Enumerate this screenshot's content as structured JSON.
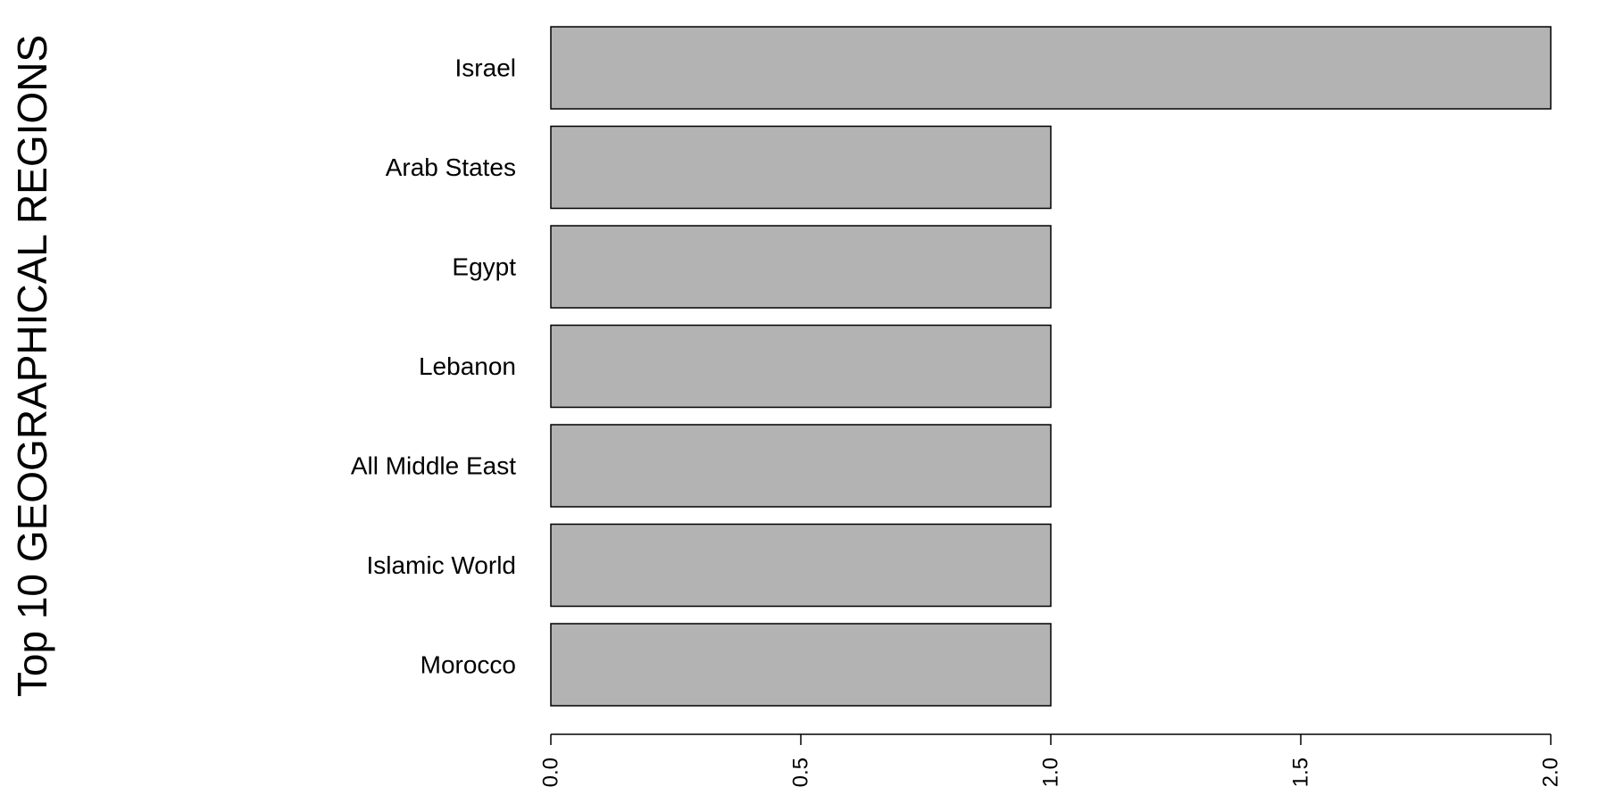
{
  "chart_data": {
    "type": "bar",
    "orientation": "horizontal",
    "ylabel": "Top 10 GEOGRAPHICAL REGIONS",
    "xlabel": "",
    "categories": [
      "Israel",
      "Arab States",
      "Egypt",
      "Lebanon",
      "All Middle East",
      "Islamic World",
      "Morocco"
    ],
    "values": [
      2,
      1,
      1,
      1,
      1,
      1,
      1
    ],
    "xlim": [
      0,
      2
    ],
    "x_ticks": [
      0,
      0.5,
      1,
      1.5,
      2
    ],
    "x_tick_labels": [
      "0.0",
      "0.5",
      "1.0",
      "1.5",
      "2.0"
    ],
    "grid": false,
    "legend": "none",
    "bar_fill": "#b3b3b3",
    "bar_stroke": "#000000"
  }
}
